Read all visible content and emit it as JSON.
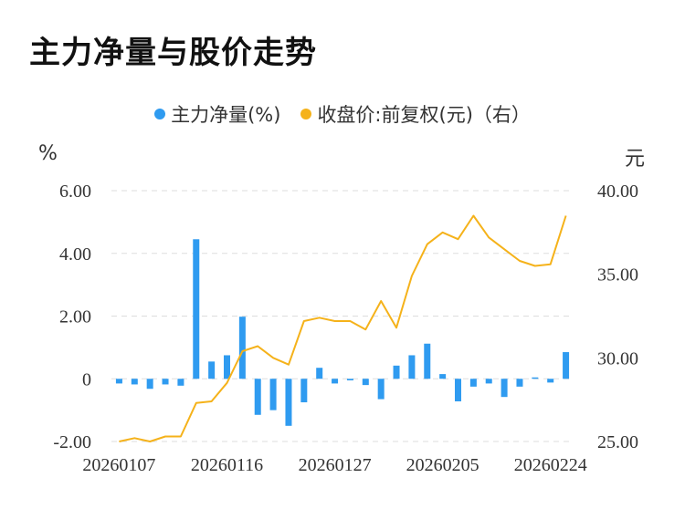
{
  "title": "主力净量与股价走势",
  "legend": {
    "net": "主力净量(%)",
    "price": "收盘价:前复权(元)（右）"
  },
  "units": {
    "left": "%",
    "right": "元"
  },
  "colors": {
    "bar": "#2f9bf0",
    "line": "#f5b21a",
    "grid": "#dddddd",
    "text": "#333333"
  },
  "chart_data": {
    "type": "bar+line",
    "x_tick_labels": [
      "20260107",
      "20260116",
      "20260127",
      "20260205",
      "20260224"
    ],
    "y_left": {
      "ticks": [
        -2.0,
        0,
        2.0,
        4.0,
        6.0
      ],
      "tick_labels": [
        "-2.00",
        "0",
        "2.00",
        "4.00",
        "6.00"
      ],
      "range": [
        -2.0,
        6.0
      ]
    },
    "y_right": {
      "ticks": [
        25.0,
        30.0,
        35.0,
        40.0
      ],
      "tick_labels": [
        "25.00",
        "30.00",
        "35.00",
        "40.00"
      ],
      "range": [
        25.0,
        40.0
      ]
    },
    "series": [
      {
        "name": "主力净量(%)",
        "type": "bar",
        "axis": "left",
        "values": [
          -0.15,
          -0.18,
          -0.32,
          -0.18,
          -0.22,
          4.45,
          0.55,
          0.75,
          1.98,
          -1.15,
          -1.0,
          -1.5,
          -0.75,
          0.35,
          -0.15,
          -0.05,
          -0.2,
          -0.65,
          0.42,
          0.75,
          1.12,
          0.15,
          -0.72,
          -0.25,
          -0.15,
          -0.58,
          -0.25,
          0.0,
          -0.12,
          0.85
        ]
      },
      {
        "name": "收盘价:前复权(元)（右）",
        "type": "line",
        "axis": "right",
        "values": [
          25.0,
          25.2,
          25.0,
          25.3,
          25.3,
          27.3,
          27.4,
          28.5,
          30.4,
          30.7,
          30.0,
          29.6,
          32.2,
          32.4,
          32.2,
          32.2,
          31.7,
          33.4,
          31.8,
          34.9,
          36.8,
          37.5,
          37.1,
          38.5,
          37.2,
          36.5,
          35.8,
          35.5,
          35.6,
          38.5
        ]
      }
    ]
  }
}
